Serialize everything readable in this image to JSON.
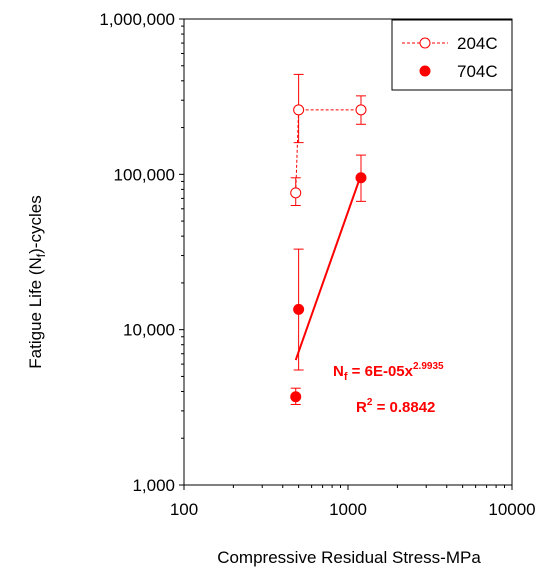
{
  "chart_data": {
    "type": "scatter",
    "xlabel": "Compressive Residual Stress-MPa",
    "ylabel_parts": [
      "Fatigue Life (N",
      "f",
      ")-cycles"
    ],
    "xscale": "log",
    "yscale": "log",
    "xlim": [
      100,
      10000
    ],
    "ylim": [
      1000,
      1000000
    ],
    "x_ticks": [
      100,
      1000,
      10000
    ],
    "x_tick_labels": [
      "100",
      "1000",
      "10000"
    ],
    "y_ticks": [
      1000,
      10000,
      100000,
      1000000
    ],
    "y_tick_labels": [
      "1,000",
      "10,000",
      "100,000",
      "1,000,000"
    ],
    "legend_position": "top-right",
    "series": [
      {
        "name": "204C",
        "marker": "open-circle",
        "line": "dashed",
        "color": "#ff0000",
        "points": [
          {
            "x": 480,
            "y": 76000,
            "err_low": 63000,
            "err_high": 95000
          },
          {
            "x": 500,
            "y": 260000,
            "err_low": 160000,
            "err_high": 440000
          },
          {
            "x": 1200,
            "y": 260000,
            "err_low": 210000,
            "err_high": 320000
          }
        ]
      },
      {
        "name": "704C",
        "marker": "filled-circle",
        "line": "none",
        "color": "#ff0000",
        "points": [
          {
            "x": 480,
            "y": 3700,
            "err_low": 3300,
            "err_high": 4200
          },
          {
            "x": 500,
            "y": 13500,
            "err_low": 5500,
            "err_high": 33000
          },
          {
            "x": 1200,
            "y": 95000,
            "err_low": 67000,
            "err_high": 133000
          }
        ]
      }
    ],
    "trendline": {
      "series": "704C",
      "type": "power",
      "color": "#ff0000",
      "x_range": [
        480,
        1200
      ],
      "coefficient": 6e-05,
      "exponent": 2.9935,
      "equation_main": "N",
      "equation_sub": "f",
      "equation_rest": " = 6E-05x",
      "equation_exp": "2.9935",
      "r2_main": "R",
      "r2_exp": "2",
      "r2_rest": " = 0.8842"
    }
  }
}
